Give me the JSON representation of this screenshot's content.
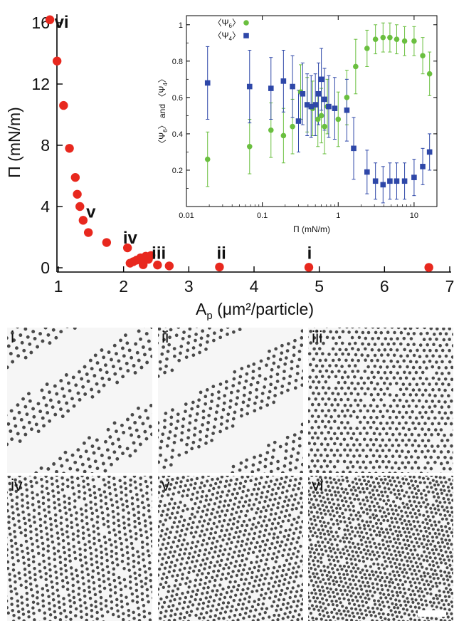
{
  "chart_data": [
    {
      "type": "scatter",
      "xlabel": "A",
      "xlabel_sub": "p",
      "xlabel_rest": " (μm²/particle)",
      "ylabel": "Π (mN/m)",
      "xlim": [
        0.8,
        7
      ],
      "ylim": [
        0,
        17
      ],
      "xticks": [
        1,
        2,
        3,
        4,
        5,
        6,
        7
      ],
      "xtick_labels": [
        "1",
        "2",
        "3",
        "4",
        "5",
        "6",
        "7"
      ],
      "yticks": [
        0,
        4,
        8,
        12,
        16
      ],
      "ytick_labels": [
        "0",
        "4",
        "8",
        "12",
        "16"
      ],
      "marker_color": "#e8281e",
      "points": [
        {
          "x": 0.87,
          "y": 16.2
        },
        {
          "x": 0.98,
          "y": 13.5
        },
        {
          "x": 1.08,
          "y": 10.6
        },
        {
          "x": 1.17,
          "y": 7.8
        },
        {
          "x": 1.26,
          "y": 5.9
        },
        {
          "x": 1.29,
          "y": 4.8
        },
        {
          "x": 1.33,
          "y": 4.0
        },
        {
          "x": 1.38,
          "y": 3.1
        },
        {
          "x": 1.46,
          "y": 2.3
        },
        {
          "x": 1.74,
          "y": 1.65
        },
        {
          "x": 2.06,
          "y": 1.3
        },
        {
          "x": 2.1,
          "y": 0.3
        },
        {
          "x": 2.15,
          "y": 0.4
        },
        {
          "x": 2.2,
          "y": 0.5
        },
        {
          "x": 2.26,
          "y": 0.65
        },
        {
          "x": 2.3,
          "y": 0.2
        },
        {
          "x": 2.34,
          "y": 0.75
        },
        {
          "x": 2.38,
          "y": 0.55
        },
        {
          "x": 2.42,
          "y": 0.8
        },
        {
          "x": 2.52,
          "y": 0.18
        },
        {
          "x": 2.7,
          "y": 0.12
        },
        {
          "x": 3.47,
          "y": 0.05
        },
        {
          "x": 4.84,
          "y": 0.03
        },
        {
          "x": 6.68,
          "y": 0.02
        }
      ],
      "annotations": [
        {
          "text": "vi",
          "x": 1.05,
          "y": 16.0
        },
        {
          "text": "v",
          "x": 1.5,
          "y": 3.6
        },
        {
          "text": "iv",
          "x": 2.1,
          "y": 1.9
        },
        {
          "text": "iii",
          "x": 2.54,
          "y": 0.9
        },
        {
          "text": "ii",
          "x": 3.5,
          "y": 0.9
        },
        {
          "text": "i",
          "x": 4.85,
          "y": 0.9
        }
      ]
    },
    {
      "type": "scatter",
      "xscale": "log",
      "xlabel": "Π (mN/m)",
      "ylabel": "〈Ψ6〉 and 〈Ψ4〉",
      "ylabel_parts": [
        "〈Ψ",
        "6",
        "〉 and 〈Ψ",
        "4",
        "〉"
      ],
      "xlim": [
        0.01,
        20
      ],
      "ylim": [
        0,
        1.05
      ],
      "xticks": [
        0.01,
        0.1,
        1,
        10
      ],
      "xtick_labels": [
        "0.01",
        "0.1",
        "1",
        "10"
      ],
      "yticks": [
        0.2,
        0.4,
        0.6,
        0.8,
        1.0
      ],
      "ytick_labels": [
        "0.2",
        "0.4",
        "0.6",
        "0.8",
        "1"
      ],
      "legend": [
        {
          "label_parts": [
            "〈Ψ",
            "6",
            "〉"
          ],
          "color": "#6abf3f",
          "marker": "circle"
        },
        {
          "label_parts": [
            "〈Ψ",
            "4",
            "〉"
          ],
          "color": "#2e47a8",
          "marker": "square"
        }
      ],
      "legend_position": "top-left",
      "series": [
        {
          "name": "〈Ψ6〉",
          "color": "#6abf3f",
          "marker": "circle",
          "points": [
            {
              "x": 0.019,
              "y": 0.26,
              "err": 0.15
            },
            {
              "x": 0.068,
              "y": 0.33,
              "err": 0.15
            },
            {
              "x": 0.13,
              "y": 0.42,
              "err": 0.15
            },
            {
              "x": 0.19,
              "y": 0.39,
              "err": 0.15
            },
            {
              "x": 0.25,
              "y": 0.44,
              "err": 0.15
            },
            {
              "x": 0.32,
              "y": 0.63,
              "err": 0.15
            },
            {
              "x": 0.39,
              "y": 0.56,
              "err": 0.15
            },
            {
              "x": 0.46,
              "y": 0.54,
              "err": 0.15
            },
            {
              "x": 0.54,
              "y": 0.48,
              "err": 0.15
            },
            {
              "x": 0.6,
              "y": 0.5,
              "err": 0.15
            },
            {
              "x": 0.66,
              "y": 0.44,
              "err": 0.15
            },
            {
              "x": 0.72,
              "y": 0.55,
              "err": 0.15
            },
            {
              "x": 1.0,
              "y": 0.48,
              "err": 0.15
            },
            {
              "x": 1.3,
              "y": 0.6,
              "err": 0.15
            },
            {
              "x": 1.7,
              "y": 0.77,
              "err": 0.15
            },
            {
              "x": 2.4,
              "y": 0.87,
              "err": 0.1
            },
            {
              "x": 3.1,
              "y": 0.92,
              "err": 0.08
            },
            {
              "x": 3.9,
              "y": 0.93,
              "err": 0.08
            },
            {
              "x": 4.8,
              "y": 0.93,
              "err": 0.08
            },
            {
              "x": 5.9,
              "y": 0.92,
              "err": 0.08
            },
            {
              "x": 7.5,
              "y": 0.91,
              "err": 0.08
            },
            {
              "x": 10,
              "y": 0.91,
              "err": 0.08
            },
            {
              "x": 13,
              "y": 0.83,
              "err": 0.1
            },
            {
              "x": 16,
              "y": 0.73,
              "err": 0.12
            }
          ]
        },
        {
          "name": "〈Ψ4〉",
          "color": "#2e47a8",
          "marker": "square",
          "points": [
            {
              "x": 0.019,
              "y": 0.68,
              "err": 0.2
            },
            {
              "x": 0.068,
              "y": 0.66,
              "err": 0.2
            },
            {
              "x": 0.13,
              "y": 0.65,
              "err": 0.17
            },
            {
              "x": 0.19,
              "y": 0.69,
              "err": 0.17
            },
            {
              "x": 0.25,
              "y": 0.66,
              "err": 0.17
            },
            {
              "x": 0.3,
              "y": 0.47,
              "err": 0.17
            },
            {
              "x": 0.34,
              "y": 0.62,
              "err": 0.17
            },
            {
              "x": 0.39,
              "y": 0.56,
              "err": 0.17
            },
            {
              "x": 0.44,
              "y": 0.55,
              "err": 0.17
            },
            {
              "x": 0.5,
              "y": 0.56,
              "err": 0.17
            },
            {
              "x": 0.55,
              "y": 0.62,
              "err": 0.17
            },
            {
              "x": 0.6,
              "y": 0.7,
              "err": 0.17
            },
            {
              "x": 0.66,
              "y": 0.59,
              "err": 0.17
            },
            {
              "x": 0.75,
              "y": 0.55,
              "err": 0.17
            },
            {
              "x": 0.9,
              "y": 0.54,
              "err": 0.17
            },
            {
              "x": 1.3,
              "y": 0.53,
              "err": 0.17
            },
            {
              "x": 1.6,
              "y": 0.32,
              "err": 0.17
            },
            {
              "x": 2.4,
              "y": 0.19,
              "err": 0.12
            },
            {
              "x": 3.1,
              "y": 0.14,
              "err": 0.1
            },
            {
              "x": 3.9,
              "y": 0.12,
              "err": 0.1
            },
            {
              "x": 4.8,
              "y": 0.14,
              "err": 0.1
            },
            {
              "x": 5.9,
              "y": 0.14,
              "err": 0.1
            },
            {
              "x": 7.5,
              "y": 0.14,
              "err": 0.1
            },
            {
              "x": 10,
              "y": 0.16,
              "err": 0.1
            },
            {
              "x": 13,
              "y": 0.22,
              "err": 0.1
            },
            {
              "x": 16,
              "y": 0.3,
              "err": 0.1
            }
          ]
        }
      ]
    }
  ],
  "panels": [
    {
      "label": "i",
      "density": 0.3
    },
    {
      "label": "ii",
      "density": 0.45
    },
    {
      "label": "iii",
      "density": 0.6
    },
    {
      "label": "iv",
      "density": 0.7
    },
    {
      "label": "v",
      "density": 0.82
    },
    {
      "label": "vi",
      "density": 1.0
    }
  ],
  "colors": {
    "panel_particle": "#4a4a4a",
    "panel_background": "#f6f6f6"
  }
}
